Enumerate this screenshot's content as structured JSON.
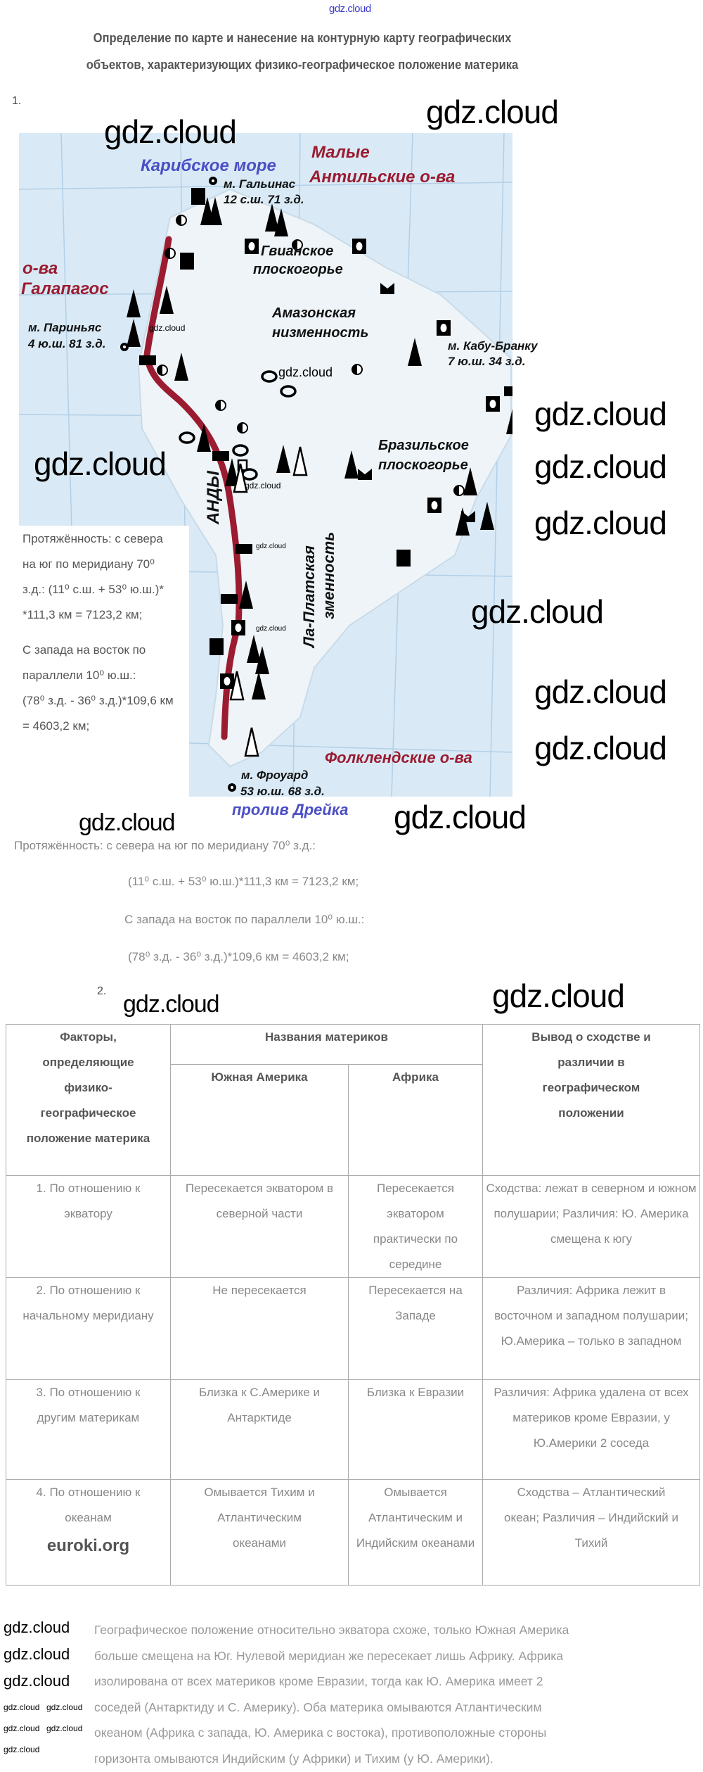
{
  "watermarks": {
    "text": "gdz.cloud",
    "euroki": "euroki.org"
  },
  "title": {
    "line1": "Определение по карте и нанесение на контурную карту географических",
    "line2": "объектов, характеризующих физико-географическое положение материка"
  },
  "task1": {
    "number": "1.",
    "map": {
      "caribbean": "Карибское море",
      "lesser_antilles_1": "Малые",
      "lesser_antilles_2": "Антильские о-ва",
      "gallinas_name": "м. Гальинас",
      "gallinas_coords": "12 с.ш. 71 з.д.",
      "guiana_1": "Гвианское",
      "guiana_2": "плоскогорье",
      "galapagos_1": "о-ва",
      "galapagos_2": "Галапагос",
      "amazon_1": "Амазонская",
      "amazon_2": "низменность",
      "parinas_name": "м. Париньяс",
      "parinas_coords": "4 ю.ш. 81 з.д.",
      "cabo_branco_name": "м. Кабу-Бранку",
      "cabo_branco_coords": "7 ю.ш. 34 з.д.",
      "brazil_1": "Бразильское",
      "brazil_2": "плоскогорье",
      "andes": "АНДЫ",
      "laplata_1": "Ла-Платская",
      "laplata_2": "зменность",
      "falklands": "Фолклендские о-ва",
      "froward_name": "м. Фроуард",
      "froward_coords": "53 ю.ш. 68 з.д.",
      "drake": "пролив Дрейка",
      "colors": {
        "sea": "#d9eaf6",
        "andes": "#9b1b30",
        "red_label": "#9b1b30",
        "blue_label": "#4b4fc4"
      }
    },
    "map_note": [
      "Протяжённость: с севера",
      "на юг по меридиану 70⁰",
      "з.д.: (11⁰ с.ш. + 53⁰ ю.ш.)*",
      "*111,3 км = 7123,2 км;",
      "С запада на восток по",
      "параллели 10⁰ ю.ш.:",
      "(78⁰ з.д. - 36⁰ з.д.)*109,6 км",
      "= 4603,2 км;"
    ],
    "calc": [
      "Протяжённость: с севера на юг по меридиану 70⁰ з.д.:",
      "(11⁰ с.ш. + 53⁰ ю.ш.)*111,3 км = 7123,2 км;",
      "С запада на восток по параллели 10⁰ ю.ш.:",
      "(78⁰ з.д. - 36⁰ з.д.)*109,6 км = 4603,2 км;"
    ]
  },
  "task2": {
    "number": "2.",
    "table": {
      "header": {
        "factors": "Факторы, определяющие физико-географическое положение материка",
        "names": "Названия материков",
        "south_america": "Южная Америка",
        "africa": "Африка",
        "conclusion": "Вывод о сходстве и различии в географическом положении"
      },
      "rows": [
        {
          "factor": "1. По отношению к экватору",
          "sa": "Пересекается экватором в северной части",
          "af": "Пересекается экватором практически по середине",
          "concl": "Сходства: лежат в северном и южном полушарии; Различия: Ю. Америка смещена к югу"
        },
        {
          "factor": "2. По отношению к начальному меридиану",
          "sa": "Не пересекается",
          "af": "Пересекается на Западе",
          "concl": "Различия: Африка лежит в восточном и западном полушарии; Ю.Америка – только в западном"
        },
        {
          "factor": "3. По отношению к другим материкам",
          "sa": "Близка к С.Америке и Антарктиде",
          "af": "Близка к Евразии",
          "concl": "Различия: Африка удалена от всех материков кроме Евразии, у Ю.Америки 2 соседа"
        },
        {
          "factor": "4. По отношению к океанам",
          "sa": "Омывается Тихим и Атлантическим океанами",
          "af": "Омывается Атлантическим и Индийским океанами",
          "concl": "Сходства – Атлантический океан; Различия – Индийский и Тихий"
        }
      ]
    }
  },
  "conclusion": [
    "Географическое положение относительно экватора схоже, только Южная Америка",
    "больше смещена на Юг. Нулевой меридиан же пересекает лишь Африку. Африка",
    "изолирована от всех материков кроме Евразии, тогда как Ю. Америка имеет 2",
    "соседей (Антарктиду и С. Америку). Оба материка омываются Атлантическим",
    "океаном (Африка с запада, Ю. Америка с востока), противоположные стороны",
    "горизонта омываются Индийским (у Африки) и Тихим (у Ю. Америки)."
  ]
}
